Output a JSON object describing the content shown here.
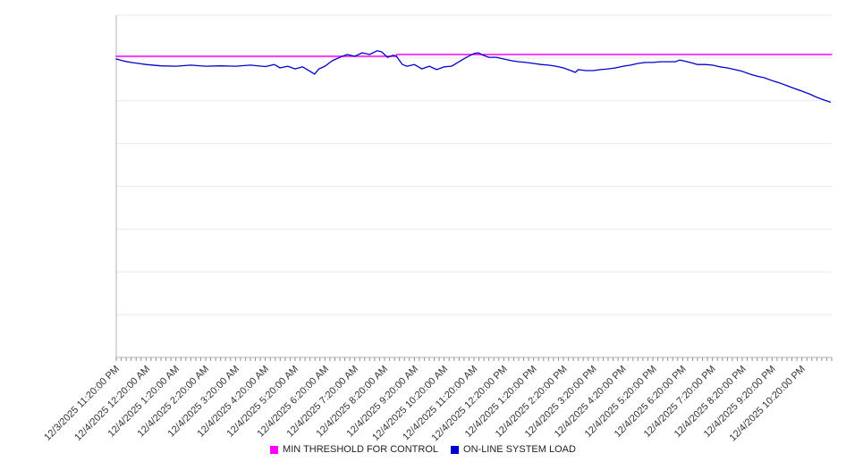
{
  "chart_data": {
    "type": "line",
    "title": "",
    "x_tick_labels": [
      "12/3/2025 11:20:00 PM",
      "12/4/2025 12:20:00 AM",
      "12/4/2025 1:20:00 AM",
      "12/4/2025 2:20:00 AM",
      "12/4/2025 3:20:00 AM",
      "12/4/2025 4:20:00 AM",
      "12/4/2025 5:20:00 AM",
      "12/4/2025 6:20:00 AM",
      "12/4/2025 7:20:00 AM",
      "12/4/2025 8:20:00 AM",
      "12/4/2025 9:20:00 AM",
      "12/4/2025 10:20:00 AM",
      "12/4/2025 11:20:00 AM",
      "12/4/2025 12:20:00 PM",
      "12/4/2025 1:20:00 PM",
      "12/4/2025 2:20:00 PM",
      "12/4/2025 3:20:00 PM",
      "12/4/2025 4:20:00 PM",
      "12/4/2025 5:20:00 PM",
      "12/4/2025 6:20:00 PM",
      "12/4/2025 7:20:00 PM",
      "12/4/2025 8:20:00 PM",
      "12/4/2025 9:20:00 PM",
      "12/4/2025 10:20:00 PM"
    ],
    "x_range_hours": [
      0,
      24
    ],
    "ylim": [
      0,
      100
    ],
    "y_tick_labels_visible": false,
    "y_gridline_divisions": 8,
    "grid": "horizontal",
    "legend_position": "bottom",
    "style": {
      "grid_color": "#e9e9e9",
      "axis_color": "#b3b3b3",
      "tick_color": "#8f8f8f",
      "label_color": "#333333"
    },
    "series": [
      {
        "name": "MIN THRESHOLD FOR CONTROL",
        "color": "#ff00ff",
        "width": 1.5,
        "points": [
          [
            0,
            88.0
          ],
          [
            9.4,
            88.0
          ],
          [
            9.4,
            88.5
          ],
          [
            24,
            88.5
          ]
        ]
      },
      {
        "name": "ON-LINE SYSTEM LOAD",
        "color": "#0000cd",
        "width": 1.3,
        "points": [
          [
            0,
            87.2
          ],
          [
            0.25,
            86.6
          ],
          [
            0.5,
            86.2
          ],
          [
            0.75,
            85.9
          ],
          [
            1,
            85.6
          ],
          [
            1.5,
            85.2
          ],
          [
            2,
            85.1
          ],
          [
            2.5,
            85.4
          ],
          [
            3,
            85.1
          ],
          [
            3.5,
            85.2
          ],
          [
            4,
            85.1
          ],
          [
            4.5,
            85.4
          ],
          [
            5,
            85.0
          ],
          [
            5.3,
            85.6
          ],
          [
            5.5,
            84.6
          ],
          [
            5.75,
            85.1
          ],
          [
            6,
            84.3
          ],
          [
            6.25,
            84.9
          ],
          [
            6.5,
            83.6
          ],
          [
            6.65,
            82.8
          ],
          [
            6.8,
            84.3
          ],
          [
            7,
            85.1
          ],
          [
            7.25,
            86.7
          ],
          [
            7.5,
            87.7
          ],
          [
            7.75,
            88.5
          ],
          [
            8,
            88.0
          ],
          [
            8.25,
            89.0
          ],
          [
            8.5,
            88.5
          ],
          [
            8.75,
            89.6
          ],
          [
            8.9,
            89.3
          ],
          [
            9.1,
            87.7
          ],
          [
            9.3,
            88.3
          ],
          [
            9.4,
            88.0
          ],
          [
            9.6,
            85.6
          ],
          [
            9.75,
            85.1
          ],
          [
            10,
            85.6
          ],
          [
            10.25,
            84.3
          ],
          [
            10.5,
            85.1
          ],
          [
            10.75,
            84.1
          ],
          [
            11,
            84.9
          ],
          [
            11.25,
            85.1
          ],
          [
            11.5,
            86.4
          ],
          [
            11.75,
            87.7
          ],
          [
            12,
            88.8
          ],
          [
            12.15,
            89.0
          ],
          [
            12.3,
            88.3
          ],
          [
            12.5,
            87.7
          ],
          [
            12.75,
            87.7
          ],
          [
            13,
            87.2
          ],
          [
            13.25,
            86.7
          ],
          [
            13.5,
            86.4
          ],
          [
            13.75,
            86.2
          ],
          [
            14,
            85.9
          ],
          [
            14.25,
            85.6
          ],
          [
            14.5,
            85.4
          ],
          [
            14.75,
            85.1
          ],
          [
            15,
            84.6
          ],
          [
            15.25,
            83.8
          ],
          [
            15.4,
            83.3
          ],
          [
            15.5,
            84.1
          ],
          [
            15.75,
            83.8
          ],
          [
            16,
            83.8
          ],
          [
            16.25,
            84.1
          ],
          [
            16.5,
            84.3
          ],
          [
            16.75,
            84.6
          ],
          [
            17,
            85.1
          ],
          [
            17.25,
            85.4
          ],
          [
            17.5,
            85.9
          ],
          [
            17.75,
            86.2
          ],
          [
            18,
            86.2
          ],
          [
            18.25,
            86.4
          ],
          [
            18.5,
            86.4
          ],
          [
            18.75,
            86.4
          ],
          [
            18.9,
            86.9
          ],
          [
            19,
            86.7
          ],
          [
            19.25,
            86.2
          ],
          [
            19.5,
            85.6
          ],
          [
            19.75,
            85.6
          ],
          [
            20,
            85.4
          ],
          [
            20.25,
            84.9
          ],
          [
            20.5,
            84.6
          ],
          [
            20.75,
            84.1
          ],
          [
            21,
            83.6
          ],
          [
            21.25,
            82.8
          ],
          [
            21.5,
            82.2
          ],
          [
            21.75,
            81.7
          ],
          [
            22,
            80.9
          ],
          [
            22.25,
            80.2
          ],
          [
            22.5,
            79.4
          ],
          [
            22.75,
            78.6
          ],
          [
            23,
            77.8
          ],
          [
            23.25,
            77.0
          ],
          [
            23.5,
            76.0
          ],
          [
            23.75,
            75.2
          ],
          [
            23.95,
            74.6
          ]
        ]
      }
    ]
  }
}
